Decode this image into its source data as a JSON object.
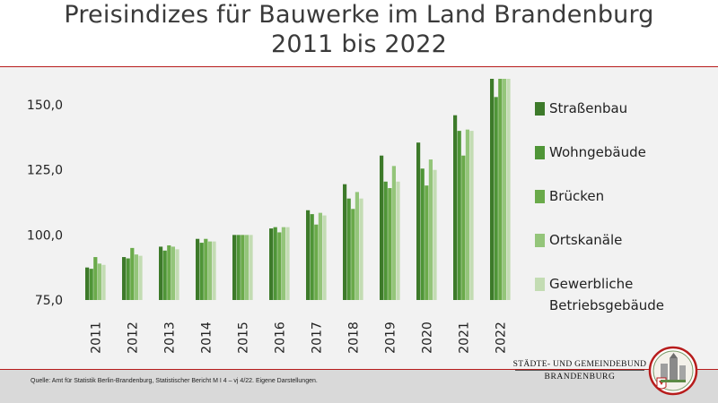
{
  "title_line1": "Preisindizes für Bauwerke im Land Brandenburg",
  "title_line2": "2011 bis 2022",
  "source": "Quelle: Amt für Statistik Berlin-Brandenburg, Statistischer Bericht M I 4 – vj 4/22. Eigene Darstellungen.",
  "org_line1": "STÄDTE- UND GEMEINDEBUND",
  "org_line2": "BRANDENBURG",
  "chart_data": {
    "type": "bar",
    "title": "Preisindizes für Bauwerke im Land Brandenburg 2011 bis 2022",
    "categories": [
      "2011",
      "2012",
      "2013",
      "2014",
      "2015",
      "2016",
      "2017",
      "2018",
      "2019",
      "2020",
      "2021",
      "2022"
    ],
    "ylim": [
      75,
      160
    ],
    "yticks": [
      75,
      100,
      125,
      150
    ],
    "ytick_labels": [
      "75,0",
      "100,0",
      "125,0",
      "150,0"
    ],
    "grid": false,
    "legend_position": "right",
    "series": [
      {
        "name": "Straßenbau",
        "color": "#3d7a2a",
        "values": [
          87.5,
          91.5,
          95.5,
          98.5,
          100.0,
          102.5,
          109.5,
          119.5,
          130.5,
          135.5,
          146.0,
          160.0
        ]
      },
      {
        "name": "Wohngebäude",
        "color": "#4f9537",
        "values": [
          87.0,
          91.0,
          94.0,
          97.0,
          100.0,
          103.0,
          108.0,
          114.0,
          120.5,
          125.5,
          140.0,
          153.0
        ]
      },
      {
        "name": "Brücken",
        "color": "#6aaa4a",
        "values": [
          91.5,
          95.0,
          96.0,
          98.5,
          100.0,
          101.0,
          104.0,
          110.0,
          118.0,
          119.0,
          130.5,
          160.0
        ]
      },
      {
        "name": "Ortskanäle",
        "color": "#94c57a",
        "values": [
          89.0,
          92.5,
          95.5,
          97.5,
          100.0,
          103.0,
          108.5,
          116.5,
          126.5,
          129.0,
          140.5,
          160.0
        ]
      },
      {
        "name": "Gewerbliche Betriebsgebäude",
        "legend_lines": [
          "Gewerbliche",
          "Betriebsgebäude"
        ],
        "color": "#c3dcb3",
        "values": [
          88.5,
          92.0,
          94.5,
          97.5,
          100.0,
          103.0,
          107.5,
          114.0,
          120.5,
          125.0,
          140.0,
          160.0
        ]
      }
    ]
  }
}
